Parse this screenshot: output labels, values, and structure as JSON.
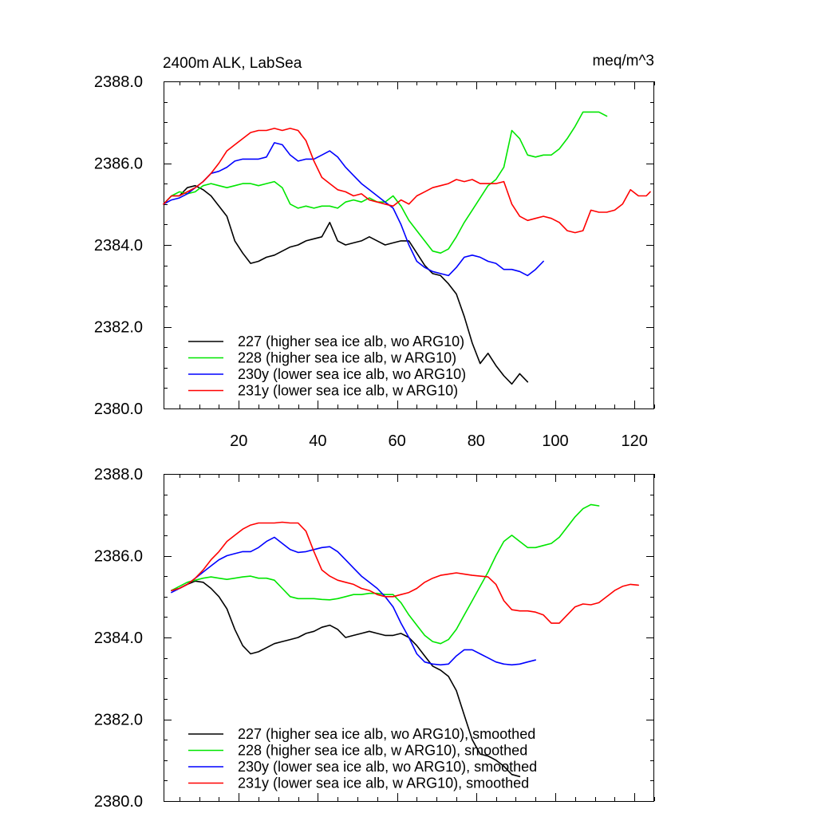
{
  "chart_data": [
    {
      "type": "line",
      "title": "2400m ALK, LabSea",
      "units": "meq/m^3",
      "xlim": [
        1,
        125
      ],
      "ylim": [
        2380,
        2388
      ],
      "xticks": [
        20,
        40,
        60,
        80,
        100,
        120
      ],
      "xtick_labels": [
        "20",
        "40",
        "60",
        "80",
        "100",
        "120"
      ],
      "yticks": [
        2380,
        2382,
        2384,
        2386,
        2388
      ],
      "ytick_labels": [
        "2380.0",
        "2382.0",
        "2384.0",
        "2386.0",
        "2388.0"
      ],
      "grid": false,
      "legend_position": "bottom-left",
      "series": [
        {
          "name": "227 (higher sea ice alb, wo ARG10)",
          "color": "#000000",
          "x": [
            1,
            3,
            5,
            7,
            9,
            11,
            13,
            15,
            17,
            19,
            21,
            23,
            25,
            27,
            29,
            31,
            33,
            35,
            37,
            39,
            41,
            43,
            45,
            47,
            49,
            51,
            53,
            55,
            57,
            59,
            61,
            63,
            65,
            67,
            69,
            71,
            73,
            75,
            77,
            79,
            81,
            83,
            85,
            87,
            89,
            91,
            93
          ],
          "values": [
            2385.0,
            2385.2,
            2385.2,
            2385.4,
            2385.45,
            2385.35,
            2385.2,
            2384.95,
            2384.7,
            2384.1,
            2383.8,
            2383.55,
            2383.6,
            2383.7,
            2383.75,
            2383.85,
            2383.95,
            2384.0,
            2384.1,
            2384.15,
            2384.2,
            2384.55,
            2384.1,
            2384.0,
            2384.05,
            2384.1,
            2384.2,
            2384.1,
            2384.0,
            2384.05,
            2384.1,
            2384.1,
            2383.8,
            2383.5,
            2383.3,
            2383.25,
            2383.05,
            2382.8,
            2382.25,
            2381.6,
            2381.1,
            2381.35,
            2381.05,
            2380.8,
            2380.6,
            2380.85,
            2380.65
          ]
        },
        {
          "name": "228 (higher sea ice alb, w ARG10)",
          "color": "#00e600",
          "x": [
            1,
            3,
            5,
            7,
            9,
            11,
            13,
            15,
            17,
            19,
            21,
            23,
            25,
            27,
            29,
            31,
            33,
            35,
            37,
            39,
            41,
            43,
            45,
            47,
            49,
            51,
            53,
            55,
            57,
            59,
            61,
            63,
            65,
            67,
            69,
            71,
            73,
            75,
            77,
            79,
            81,
            83,
            85,
            87,
            89,
            91,
            93,
            95,
            97,
            99,
            101,
            103,
            105,
            107,
            109,
            111,
            113
          ],
          "values": [
            2385.0,
            2385.2,
            2385.3,
            2385.25,
            2385.3,
            2385.45,
            2385.5,
            2385.45,
            2385.4,
            2385.45,
            2385.5,
            2385.5,
            2385.45,
            2385.5,
            2385.55,
            2385.4,
            2385.0,
            2384.9,
            2384.95,
            2384.9,
            2384.95,
            2384.95,
            2384.9,
            2385.05,
            2385.1,
            2385.05,
            2385.15,
            2385.05,
            2385.05,
            2385.2,
            2384.95,
            2384.6,
            2384.35,
            2384.1,
            2383.85,
            2383.8,
            2383.9,
            2384.2,
            2384.55,
            2384.85,
            2385.15,
            2385.45,
            2385.6,
            2385.9,
            2386.8,
            2386.6,
            2386.2,
            2386.15,
            2386.2,
            2386.2,
            2386.35,
            2386.6,
            2386.9,
            2387.25,
            2387.25,
            2387.25,
            2387.15
          ]
        },
        {
          "name": "230y (lower sea ice alb, wo ARG10)",
          "color": "#0000ff",
          "x": [
            1,
            3,
            5,
            7,
            9,
            11,
            13,
            15,
            17,
            19,
            21,
            23,
            25,
            27,
            29,
            31,
            33,
            35,
            37,
            39,
            41,
            43,
            45,
            47,
            49,
            51,
            53,
            55,
            57,
            59,
            61,
            63,
            65,
            67,
            69,
            71,
            73,
            75,
            77,
            79,
            81,
            83,
            85,
            87,
            89,
            91,
            93,
            95,
            97
          ],
          "values": [
            2385.0,
            2385.1,
            2385.15,
            2385.25,
            2385.4,
            2385.55,
            2385.75,
            2385.8,
            2385.9,
            2386.05,
            2386.1,
            2386.1,
            2386.1,
            2386.15,
            2386.5,
            2386.45,
            2386.2,
            2386.05,
            2386.1,
            2386.1,
            2386.2,
            2386.3,
            2386.15,
            2385.9,
            2385.7,
            2385.5,
            2385.35,
            2385.2,
            2385.05,
            2384.9,
            2384.5,
            2384.0,
            2383.6,
            2383.45,
            2383.35,
            2383.3,
            2383.25,
            2383.45,
            2383.7,
            2383.75,
            2383.7,
            2383.6,
            2383.55,
            2383.4,
            2383.4,
            2383.35,
            2383.25,
            2383.4,
            2383.6
          ]
        },
        {
          "name": "231y (lower sea ice alb, w ARG10)",
          "color": "#ff0000",
          "x": [
            1,
            3,
            5,
            7,
            9,
            11,
            13,
            15,
            17,
            19,
            21,
            23,
            25,
            27,
            29,
            31,
            33,
            35,
            37,
            39,
            41,
            43,
            45,
            47,
            49,
            51,
            53,
            55,
            57,
            59,
            61,
            63,
            65,
            67,
            69,
            71,
            73,
            75,
            77,
            79,
            81,
            83,
            85,
            87,
            89,
            91,
            93,
            95,
            97,
            99,
            101,
            103,
            105,
            107,
            109,
            111,
            113,
            115,
            117,
            119,
            121,
            123,
            124
          ],
          "values": [
            2385.0,
            2385.2,
            2385.2,
            2385.3,
            2385.4,
            2385.55,
            2385.75,
            2386.0,
            2386.3,
            2386.45,
            2386.6,
            2386.75,
            2386.8,
            2386.8,
            2386.85,
            2386.8,
            2386.85,
            2386.8,
            2386.55,
            2386.05,
            2385.65,
            2385.5,
            2385.35,
            2385.3,
            2385.2,
            2385.25,
            2385.1,
            2385.05,
            2385.0,
            2384.95,
            2385.1,
            2385.0,
            2385.2,
            2385.3,
            2385.4,
            2385.45,
            2385.5,
            2385.6,
            2385.55,
            2385.6,
            2385.5,
            2385.5,
            2385.5,
            2385.55,
            2385.0,
            2384.7,
            2384.6,
            2384.65,
            2384.7,
            2384.65,
            2384.55,
            2384.35,
            2384.3,
            2384.35,
            2384.85,
            2384.8,
            2384.8,
            2384.85,
            2385.0,
            2385.35,
            2385.2,
            2385.2,
            2385.3
          ]
        }
      ]
    },
    {
      "type": "line",
      "title": "",
      "xlim": [
        1,
        125
      ],
      "ylim": [
        2380,
        2388
      ],
      "xticks": [
        20,
        40,
        60,
        80,
        100,
        120
      ],
      "xtick_labels": [],
      "yticks": [
        2380,
        2382,
        2384,
        2386,
        2388
      ],
      "ytick_labels": [
        "2380.0",
        "2382.0",
        "2384.0",
        "2386.0",
        "2388.0"
      ],
      "grid": false,
      "legend_position": "bottom-left",
      "series": [
        {
          "name": "227 (higher sea ice alb, wo ARG10), smoothed",
          "color": "#000000",
          "x": [
            3,
            5,
            7,
            9,
            11,
            13,
            15,
            17,
            19,
            21,
            23,
            25,
            27,
            29,
            31,
            33,
            35,
            37,
            39,
            41,
            43,
            45,
            47,
            49,
            51,
            53,
            55,
            57,
            59,
            61,
            63,
            65,
            67,
            69,
            71,
            73,
            75,
            77,
            79,
            81,
            83,
            85,
            87,
            89,
            91
          ],
          "values": [
            2385.15,
            2385.2,
            2385.3,
            2385.38,
            2385.35,
            2385.2,
            2385.0,
            2384.7,
            2384.2,
            2383.8,
            2383.6,
            2383.65,
            2383.75,
            2383.85,
            2383.9,
            2383.95,
            2384.0,
            2384.1,
            2384.15,
            2384.25,
            2384.3,
            2384.2,
            2384.0,
            2384.05,
            2384.1,
            2384.15,
            2384.1,
            2384.05,
            2384.05,
            2384.1,
            2384.0,
            2383.8,
            2383.55,
            2383.3,
            2383.2,
            2383.05,
            2382.7,
            2382.1,
            2381.5,
            2381.15,
            2381.1,
            2381.0,
            2380.85,
            2380.65,
            2380.6
          ]
        },
        {
          "name": "228 (higher sea ice alb, w ARG10), smoothed",
          "color": "#00e600",
          "x": [
            3,
            5,
            7,
            9,
            11,
            13,
            15,
            17,
            19,
            21,
            23,
            25,
            27,
            29,
            31,
            33,
            35,
            37,
            39,
            41,
            43,
            45,
            47,
            49,
            51,
            53,
            55,
            57,
            59,
            61,
            63,
            65,
            67,
            69,
            71,
            73,
            75,
            77,
            79,
            81,
            83,
            85,
            87,
            89,
            91,
            93,
            95,
            97,
            99,
            101,
            103,
            105,
            107,
            109,
            111
          ],
          "values": [
            2385.15,
            2385.25,
            2385.35,
            2385.4,
            2385.45,
            2385.48,
            2385.45,
            2385.42,
            2385.45,
            2385.48,
            2385.5,
            2385.45,
            2385.45,
            2385.4,
            2385.2,
            2385.0,
            2384.95,
            2384.95,
            2384.95,
            2384.93,
            2384.92,
            2384.95,
            2385.0,
            2385.05,
            2385.05,
            2385.08,
            2385.08,
            2385.05,
            2385.05,
            2384.85,
            2384.55,
            2384.3,
            2384.05,
            2383.9,
            2383.85,
            2383.95,
            2384.2,
            2384.55,
            2384.9,
            2385.25,
            2385.6,
            2386.0,
            2386.35,
            2386.5,
            2386.35,
            2386.2,
            2386.2,
            2386.25,
            2386.3,
            2386.45,
            2386.7,
            2386.95,
            2387.15,
            2387.25,
            2387.22
          ]
        },
        {
          "name": "230y (lower sea ice alb, wo ARG10), smoothed",
          "color": "#0000ff",
          "x": [
            3,
            5,
            7,
            9,
            11,
            13,
            15,
            17,
            19,
            21,
            23,
            25,
            27,
            29,
            31,
            33,
            35,
            37,
            39,
            41,
            43,
            45,
            47,
            49,
            51,
            53,
            55,
            57,
            59,
            61,
            63,
            65,
            67,
            69,
            71,
            73,
            75,
            77,
            79,
            81,
            83,
            85,
            87,
            89,
            91,
            93,
            95
          ],
          "values": [
            2385.1,
            2385.2,
            2385.3,
            2385.45,
            2385.6,
            2385.75,
            2385.9,
            2386.0,
            2386.05,
            2386.1,
            2386.1,
            2386.2,
            2386.35,
            2386.45,
            2386.3,
            2386.15,
            2386.08,
            2386.1,
            2386.15,
            2386.2,
            2386.22,
            2386.1,
            2385.9,
            2385.7,
            2385.5,
            2385.35,
            2385.2,
            2385.0,
            2384.75,
            2384.35,
            2384.0,
            2383.6,
            2383.4,
            2383.35,
            2383.33,
            2383.35,
            2383.55,
            2383.7,
            2383.7,
            2383.6,
            2383.5,
            2383.4,
            2383.35,
            2383.33,
            2383.35,
            2383.4,
            2383.45
          ]
        },
        {
          "name": "231y (lower sea ice alb, w ARG10), smoothed",
          "color": "#ff0000",
          "x": [
            3,
            5,
            7,
            9,
            11,
            13,
            15,
            17,
            19,
            21,
            23,
            25,
            27,
            29,
            31,
            33,
            35,
            37,
            39,
            41,
            43,
            45,
            47,
            49,
            51,
            53,
            55,
            57,
            59,
            61,
            63,
            65,
            67,
            69,
            71,
            73,
            75,
            77,
            79,
            81,
            83,
            85,
            87,
            89,
            91,
            93,
            95,
            97,
            99,
            101,
            103,
            105,
            107,
            109,
            111,
            113,
            115,
            117,
            119,
            121
          ],
          "values": [
            2385.15,
            2385.2,
            2385.3,
            2385.45,
            2385.65,
            2385.9,
            2386.1,
            2386.35,
            2386.5,
            2386.65,
            2386.75,
            2386.8,
            2386.8,
            2386.8,
            2386.82,
            2386.8,
            2386.8,
            2386.6,
            2386.1,
            2385.65,
            2385.5,
            2385.4,
            2385.35,
            2385.3,
            2385.2,
            2385.15,
            2385.05,
            2385.0,
            2385.0,
            2385.05,
            2385.1,
            2385.2,
            2385.35,
            2385.45,
            2385.52,
            2385.55,
            2385.58,
            2385.55,
            2385.52,
            2385.5,
            2385.48,
            2385.3,
            2384.9,
            2384.68,
            2384.65,
            2384.65,
            2384.62,
            2384.55,
            2384.35,
            2384.35,
            2384.55,
            2384.75,
            2384.82,
            2384.8,
            2384.85,
            2385.0,
            2385.15,
            2385.25,
            2385.3,
            2385.28
          ]
        }
      ]
    }
  ]
}
